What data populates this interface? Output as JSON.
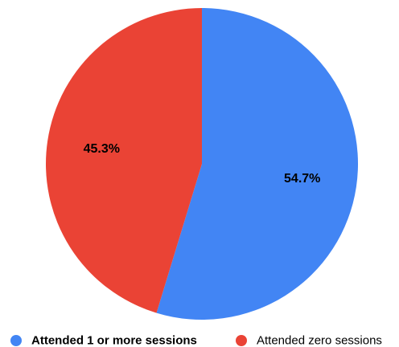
{
  "chart_data": {
    "type": "pie",
    "start_angle_deg": 0,
    "direction": "clockwise",
    "slices": [
      {
        "label": "Attended 1 or more sessions",
        "value": 54.7,
        "value_label": "54.7%",
        "color": "#4285f4",
        "legend_bold": true
      },
      {
        "label": "Attended zero sessions",
        "value": 45.3,
        "value_label": "45.3%",
        "color": "#ea4335",
        "legend_bold": false
      }
    ],
    "legend_position": "bottom"
  }
}
